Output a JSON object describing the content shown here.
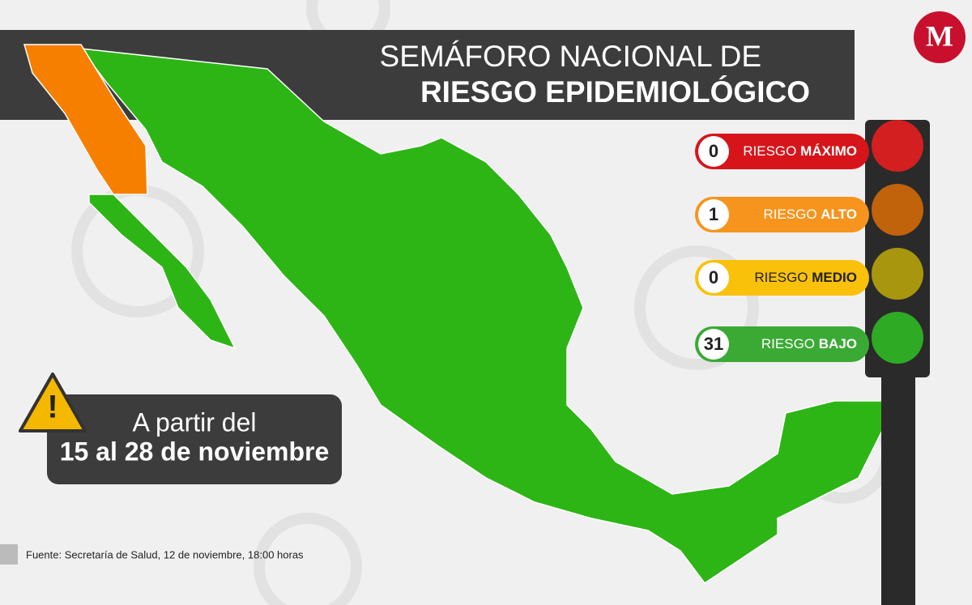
{
  "header": {
    "title_line1": "SEMÁFORO NACIONAL DE",
    "title_line2": "RIESGO EPIDEMIOLÓGICO",
    "logo": "M"
  },
  "legend": [
    {
      "count": "0",
      "prefix": "RIESGO",
      "level": "MÁXIMO"
    },
    {
      "count": "1",
      "prefix": "RIESGO",
      "level": "ALTO"
    },
    {
      "count": "0",
      "prefix": "RIESGO",
      "level": "MEDIO"
    },
    {
      "count": "31",
      "prefix": "RIESGO",
      "level": "BAJO"
    }
  ],
  "period": {
    "line1": "A partir del",
    "line2": "15 al 28 de noviembre"
  },
  "source": "Fuente: Secretaría de Salud, 12 de noviembre, 18:00 horas"
}
